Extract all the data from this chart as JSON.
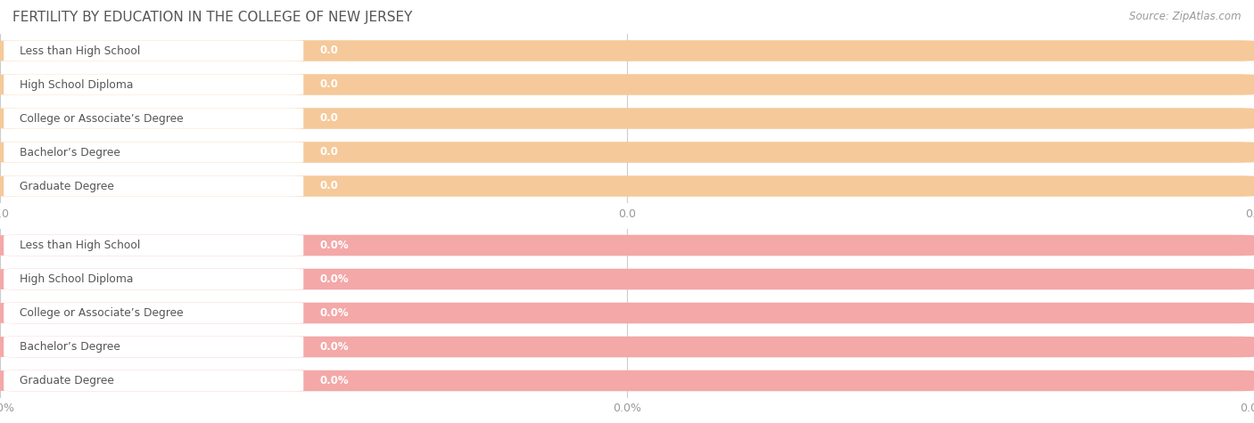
{
  "title": "FERTILITY BY EDUCATION IN THE COLLEGE OF NEW JERSEY",
  "source": "Source: ZipAtlas.com",
  "categories": [
    "Less than High School",
    "High School Diploma",
    "College or Associate’s Degree",
    "Bachelor’s Degree",
    "Graduate Degree"
  ],
  "values_top": [
    0.0,
    0.0,
    0.0,
    0.0,
    0.0
  ],
  "values_bottom": [
    0.0,
    0.0,
    0.0,
    0.0,
    0.0
  ],
  "bar_color_top": "#f5c99a",
  "bar_color_bottom": "#f4a8a8",
  "white_bar_color": "#ffffff",
  "text_color_cat": "#555555",
  "value_color_top": "#e8a060",
  "value_color_bottom": "#e07878",
  "title_color": "#555555",
  "axis_label_color": "#999999",
  "source_color": "#999999",
  "bg_color": "#ffffff",
  "figsize": [
    14.06,
    4.75
  ],
  "dpi": 100
}
